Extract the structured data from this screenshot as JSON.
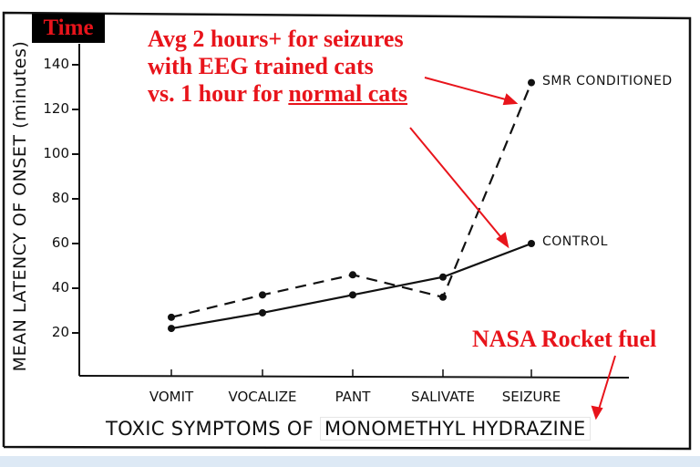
{
  "badge": {
    "text": "Time"
  },
  "annotations": {
    "main_line1": "Avg 2 hours+ for seizures",
    "main_line2": "with EEG trained cats",
    "main_line3_prefix": "vs. 1 hour for ",
    "main_line3_underlined": "normal cats",
    "nasa": "NASA Rocket fuel"
  },
  "colors": {
    "annotation_red": "#e8141b",
    "ink": "#111111",
    "badge_bg": "#000000"
  },
  "chart_data": {
    "type": "line",
    "title": "",
    "xlabel_prefix": "TOXIC SYMPTOMS OF ",
    "xlabel_boxed": "MONOMETHYL HYDRAZINE",
    "xlabel": "TOXIC SYMPTOMS OF MONOMETHYL HYDRAZINE",
    "ylabel": "MEAN LATENCY OF ONSET (minutes)",
    "categories": [
      "VOMIT",
      "VOCALIZE",
      "PANT",
      "SALIVATE",
      "SEIZURE"
    ],
    "yticks": [
      20,
      40,
      60,
      80,
      100,
      120,
      140
    ],
    "ylim": [
      0,
      150
    ],
    "grid": false,
    "legend_position": "inline labels at right end of each series",
    "series": [
      {
        "name": "SMR CONDITIONED",
        "style": "dashed",
        "values": [
          27,
          37,
          46,
          36,
          132
        ]
      },
      {
        "name": "CONTROL",
        "style": "solid",
        "values": [
          22,
          29,
          37,
          45,
          60
        ]
      }
    ]
  }
}
